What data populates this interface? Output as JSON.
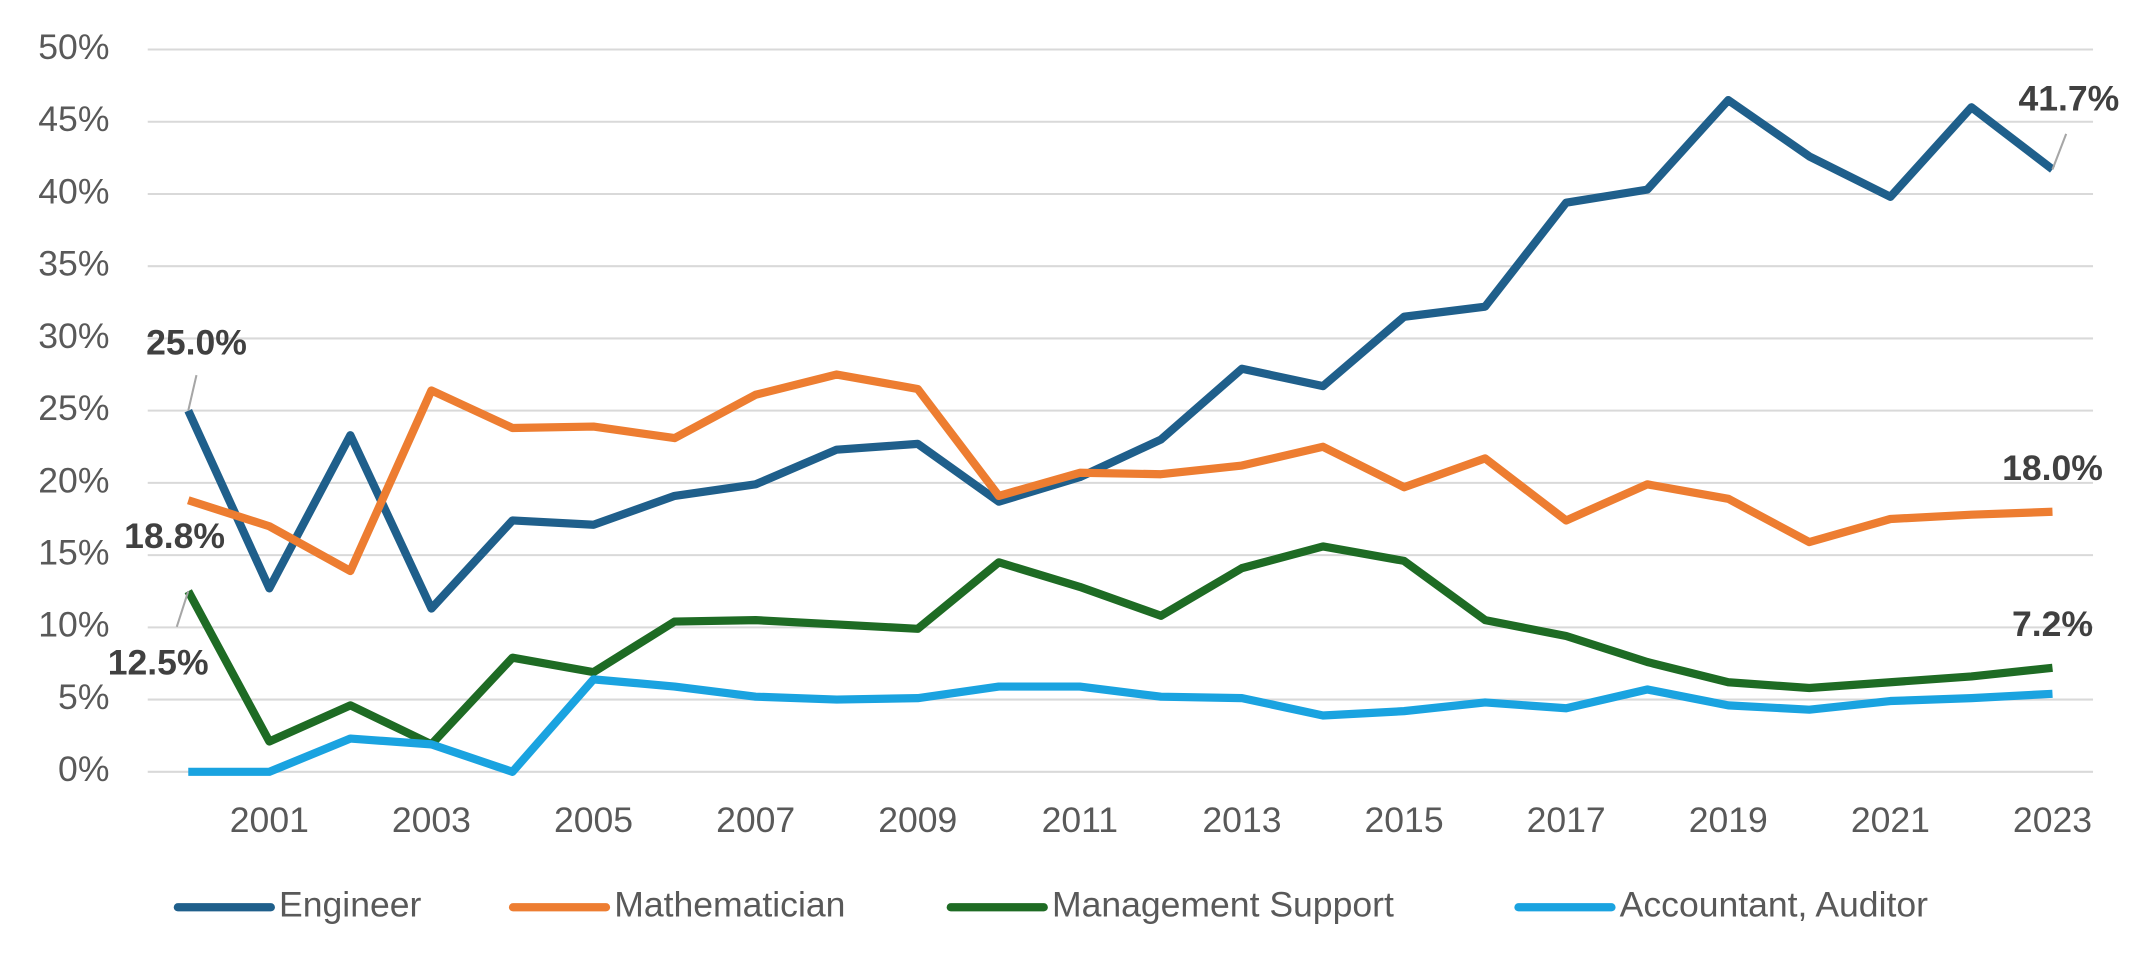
{
  "chart_data": {
    "type": "line",
    "x": [
      2000,
      2001,
      2002,
      2003,
      2004,
      2005,
      2006,
      2007,
      2008,
      2009,
      2010,
      2011,
      2012,
      2013,
      2014,
      2015,
      2016,
      2017,
      2018,
      2019,
      2020,
      2021,
      2022,
      2023
    ],
    "xlim": [
      1999.5,
      2023.5
    ],
    "xticks": [
      2001,
      2003,
      2005,
      2007,
      2009,
      2011,
      2013,
      2015,
      2017,
      2019,
      2021,
      2023
    ],
    "ylim": [
      0,
      50
    ],
    "yticks": [
      {
        "value": 0,
        "label": "0%"
      },
      {
        "value": 5,
        "label": "5%"
      },
      {
        "value": 10,
        "label": "10%"
      },
      {
        "value": 15,
        "label": "15%"
      },
      {
        "value": 20,
        "label": "20%"
      },
      {
        "value": 25,
        "label": "25%"
      },
      {
        "value": 30,
        "label": "30%"
      },
      {
        "value": 35,
        "label": "35%"
      },
      {
        "value": 40,
        "label": "40%"
      },
      {
        "value": 45,
        "label": "45%"
      },
      {
        "value": 50,
        "label": "50%"
      }
    ],
    "grid": true,
    "legend": "bottom",
    "series": [
      {
        "name": "Engineer",
        "color": "#1f5f8b",
        "values": [
          25.0,
          12.7,
          23.3,
          11.3,
          17.4,
          17.1,
          19.1,
          19.9,
          22.3,
          22.7,
          18.7,
          20.4,
          23.0,
          27.9,
          26.7,
          31.5,
          32.2,
          39.4,
          40.3,
          46.5,
          42.6,
          39.8,
          46.0,
          41.7
        ],
        "value_labels": [
          "25.0%",
          null,
          null,
          null,
          null,
          null,
          null,
          null,
          null,
          null,
          null,
          null,
          null,
          null,
          null,
          null,
          null,
          null,
          null,
          null,
          null,
          null,
          null,
          "41.7%"
        ]
      },
      {
        "name": "Mathematician",
        "color": "#ed7d31",
        "values": [
          18.8,
          17.0,
          13.9,
          26.4,
          23.8,
          23.9,
          23.1,
          26.1,
          27.5,
          26.5,
          19.1,
          20.7,
          20.6,
          21.2,
          22.5,
          19.7,
          21.7,
          17.4,
          19.9,
          18.9,
          15.9,
          17.5,
          17.8,
          18.0
        ],
        "value_labels": [
          "18.8%",
          null,
          null,
          null,
          null,
          null,
          null,
          null,
          null,
          null,
          null,
          null,
          null,
          null,
          null,
          null,
          null,
          null,
          null,
          null,
          null,
          null,
          null,
          "18.0%"
        ]
      },
      {
        "name": "Management Support",
        "color": "#1e6b24",
        "values": [
          12.5,
          2.1,
          4.6,
          1.9,
          7.9,
          6.9,
          10.4,
          10.5,
          10.2,
          9.9,
          14.5,
          12.8,
          10.8,
          14.1,
          15.6,
          14.6,
          10.5,
          9.4,
          7.6,
          6.2,
          5.8,
          6.2,
          6.6,
          7.2
        ],
        "value_labels": [
          "12.5%",
          null,
          null,
          null,
          null,
          null,
          null,
          null,
          null,
          null,
          null,
          null,
          null,
          null,
          null,
          null,
          null,
          null,
          null,
          null,
          null,
          null,
          null,
          "7.2%"
        ]
      },
      {
        "name": "Accountant, Auditor",
        "color": "#1aa3e0",
        "values": [
          0,
          0,
          2.3,
          1.9,
          0,
          6.4,
          5.9,
          5.2,
          5.0,
          5.1,
          5.9,
          5.9,
          5.2,
          5.1,
          3.9,
          4.2,
          4.8,
          4.4,
          5.7,
          4.6,
          4.3,
          4.9,
          5.1,
          5.4
        ]
      }
    ]
  }
}
